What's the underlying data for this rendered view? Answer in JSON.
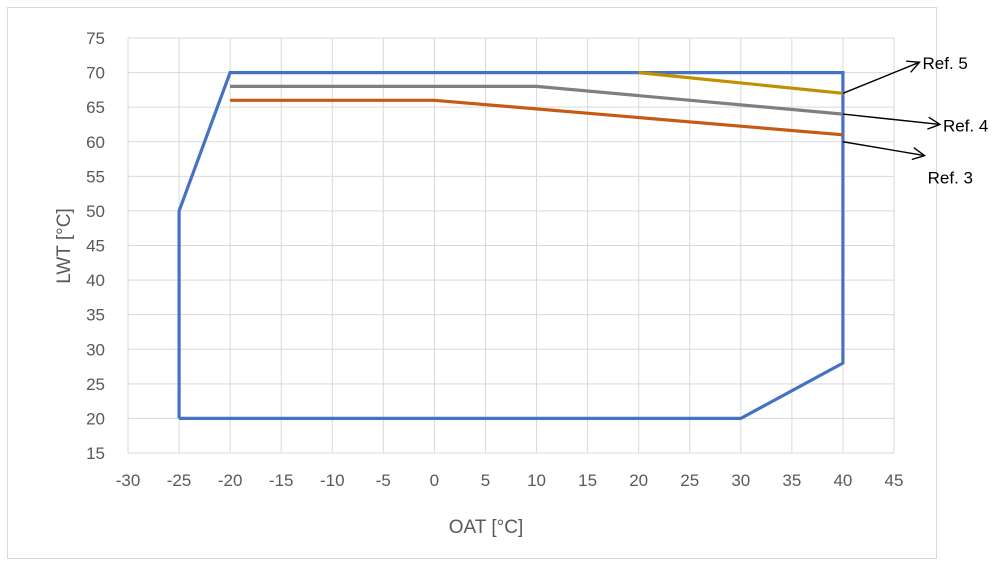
{
  "chart_data": {
    "type": "line",
    "title": "",
    "xlabel": "OAT [°C]",
    "ylabel": "LWT [°C]",
    "xlim": [
      -30,
      45
    ],
    "ylim": [
      15,
      75
    ],
    "x_ticks": [
      -30,
      -25,
      -20,
      -15,
      -10,
      -5,
      0,
      5,
      10,
      15,
      20,
      25,
      30,
      35,
      40,
      45
    ],
    "y_ticks": [
      15,
      20,
      25,
      30,
      35,
      40,
      45,
      50,
      55,
      60,
      65,
      70,
      75
    ],
    "grid": "both",
    "legend": "none",
    "series": [
      {
        "color": "#4472C4",
        "points": [
          [
            -25,
            20
          ],
          [
            -25,
            50
          ],
          [
            -20,
            70
          ],
          [
            40,
            70
          ],
          [
            40,
            28
          ],
          [
            30,
            20
          ],
          [
            -25,
            20
          ]
        ]
      },
      {
        "color": "#BF9000",
        "points": [
          [
            20,
            70
          ],
          [
            40,
            67
          ]
        ]
      },
      {
        "color": "#7F7F7F",
        "points": [
          [
            -20,
            68
          ],
          [
            10,
            68
          ],
          [
            40,
            64
          ]
        ]
      },
      {
        "color": "#C55A11",
        "points": [
          [
            -20,
            66
          ],
          [
            0,
            66
          ],
          [
            40,
            61
          ]
        ]
      }
    ],
    "annotations": [
      {
        "text": "Ref. 5",
        "arrow_from": [
          40,
          67
        ],
        "arrow_to": [
          47.5,
          71.5
        ]
      },
      {
        "text": "Ref. 4",
        "arrow_from": [
          40,
          64
        ],
        "arrow_to": [
          49.5,
          62.5
        ]
      },
      {
        "text": "Ref. 3",
        "arrow_from": [
          40,
          60
        ],
        "arrow_to": [
          48,
          58
        ]
      }
    ]
  }
}
